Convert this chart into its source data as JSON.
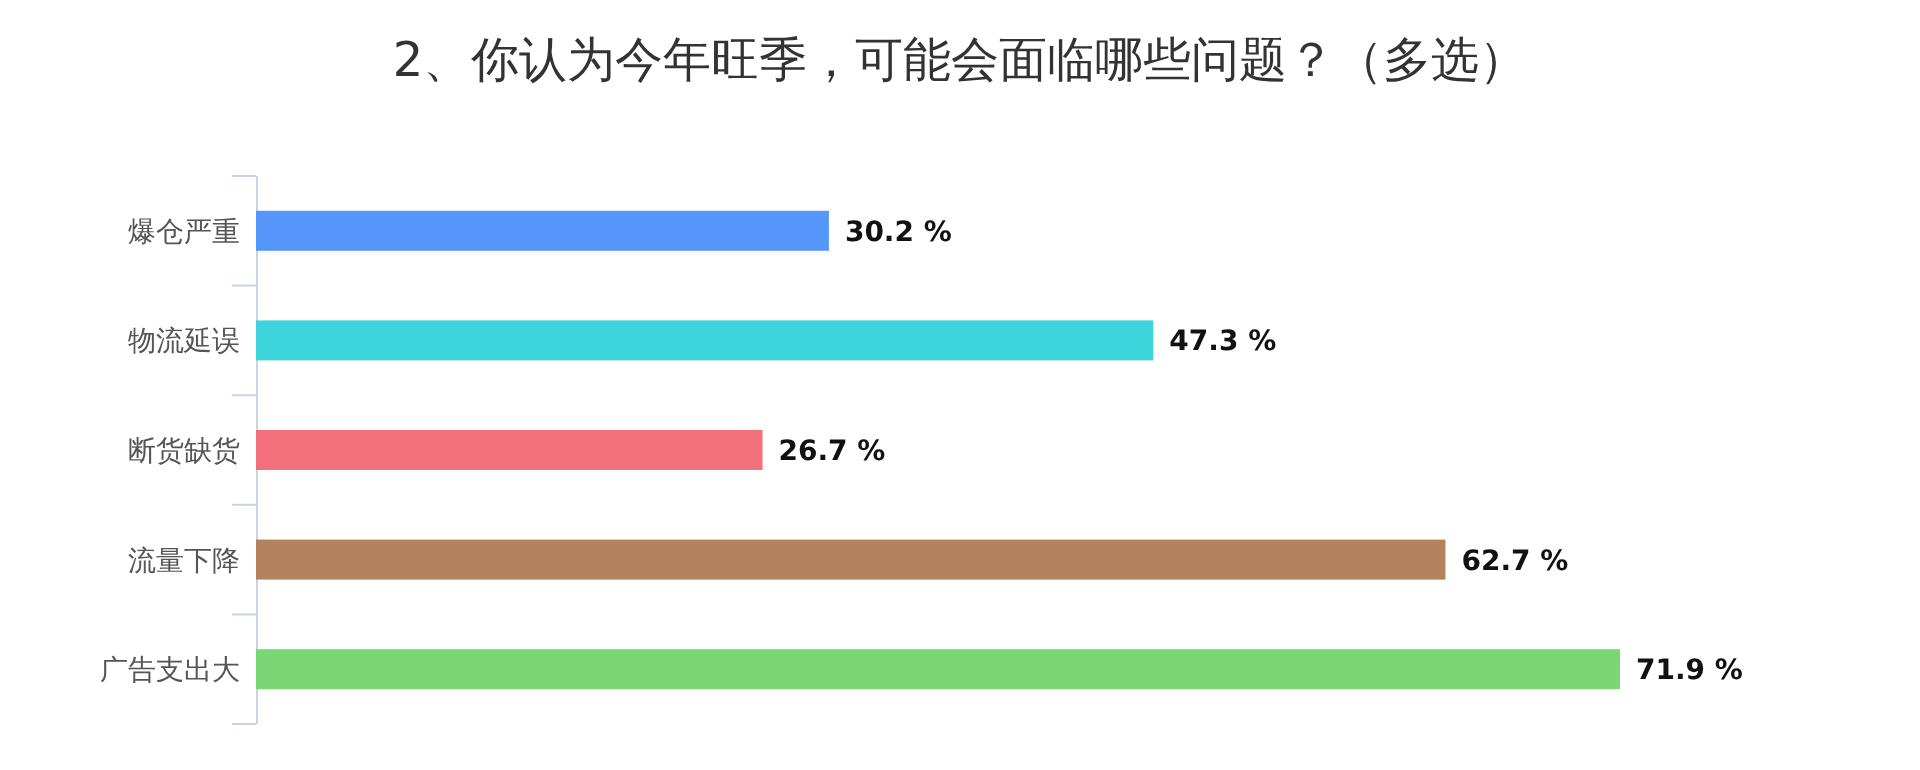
{
  "chart_data": {
    "type": "bar",
    "orientation": "horizontal",
    "title": "2、你认为今年旺季，可能会面临哪些问题？（多选）",
    "categories": [
      "爆仓严重",
      "物流延误",
      "断货缺货",
      "流量下降",
      "广告支出大"
    ],
    "values": [
      30.2,
      47.3,
      26.7,
      62.7,
      71.9
    ],
    "colors": [
      "#5596fb",
      "#3ed4dc",
      "#f2707c",
      "#b4835e",
      "#7bd775"
    ],
    "value_labels": [
      "30.2 %",
      "47.3 %",
      "26.7 %",
      "62.7 %",
      "71.9 %"
    ]
  }
}
